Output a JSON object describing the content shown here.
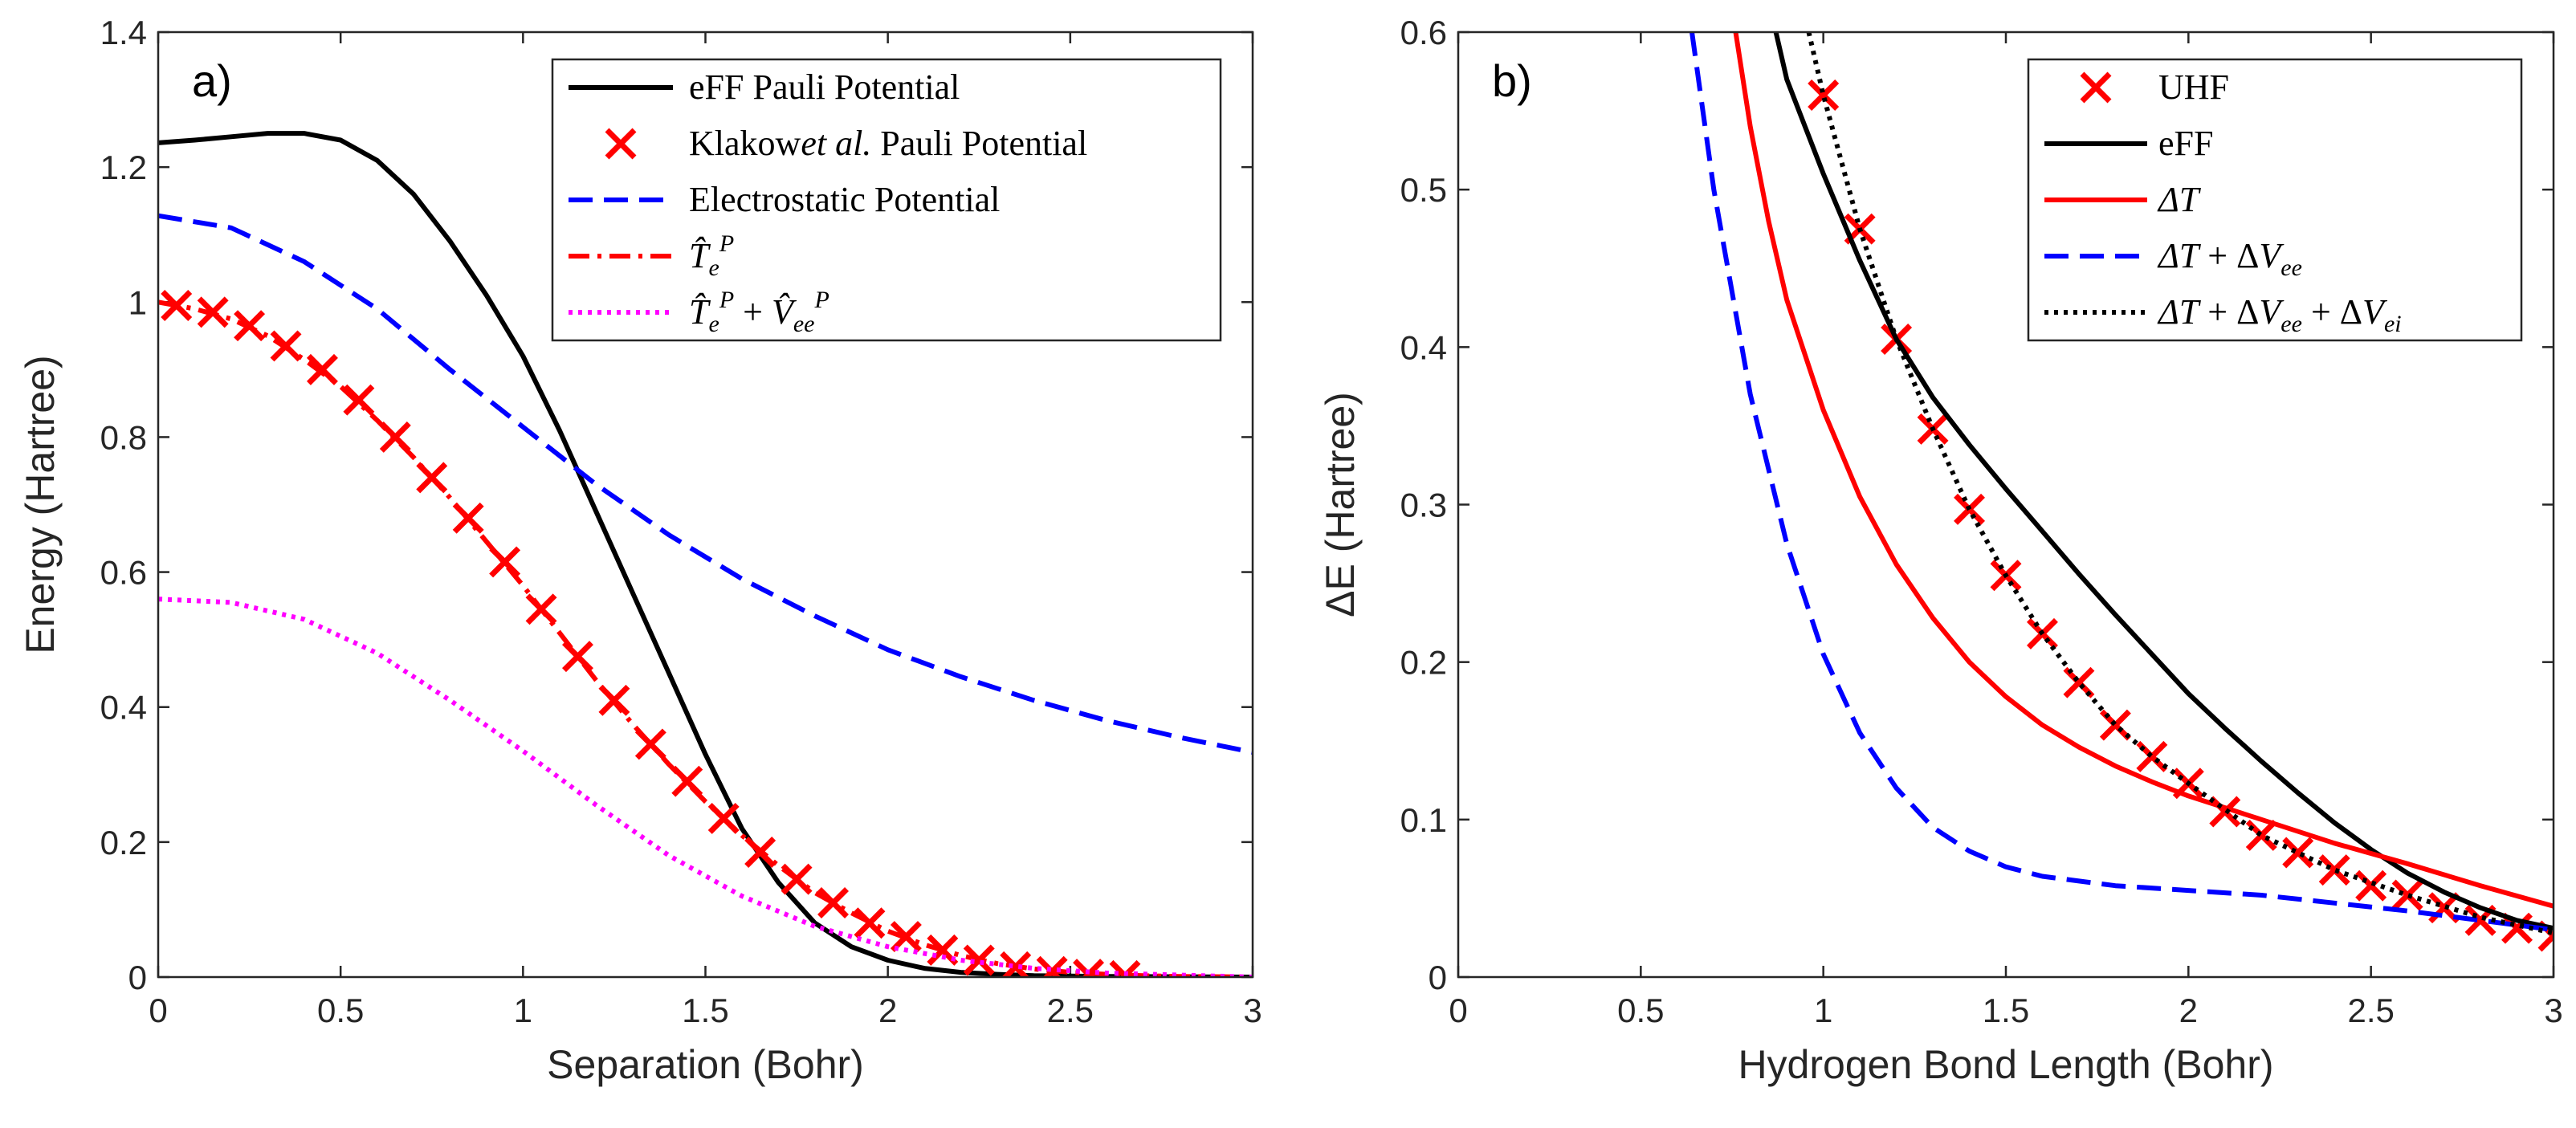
{
  "chart_data": [
    {
      "type": "line",
      "panel_label": "a)",
      "xlabel": "Separation (Bohr)",
      "ylabel": "Energy (Hartree)",
      "xlim": [
        0,
        3
      ],
      "ylim": [
        0,
        1.4
      ],
      "xticks": [
        "0",
        "0.5",
        "1",
        "1.5",
        "2",
        "2.5",
        "3"
      ],
      "yticks": [
        "0",
        "0.2",
        "0.4",
        "0.6",
        "0.8",
        "1",
        "1.2",
        "1.4"
      ],
      "legend_position": "top-right",
      "series": [
        {
          "name": "eFF Pauli Potential",
          "label_parts": [
            [
              "eFF Pauli Potential",
              ""
            ]
          ],
          "color": "#000000",
          "dash": "solid",
          "x": [
            0,
            0.1,
            0.2,
            0.3,
            0.4,
            0.5,
            0.6,
            0.7,
            0.8,
            0.9,
            1.0,
            1.1,
            1.2,
            1.3,
            1.4,
            1.5,
            1.6,
            1.7,
            1.8,
            1.9,
            2.0,
            2.1,
            2.2,
            2.3,
            2.4,
            2.6,
            2.8,
            3.0
          ],
          "y": [
            1.236,
            1.24,
            1.245,
            1.25,
            1.25,
            1.24,
            1.21,
            1.16,
            1.09,
            1.01,
            0.92,
            0.81,
            0.69,
            0.57,
            0.45,
            0.33,
            0.22,
            0.14,
            0.08,
            0.045,
            0.025,
            0.013,
            0.007,
            0.004,
            0.002,
            0.001,
            0.0005,
            0
          ]
        },
        {
          "name": "Klakowet al. Pauli Potential",
          "label_parts": [
            [
              "Klakow",
              ""
            ],
            [
              "et al.",
              "it"
            ],
            [
              " Pauli Potential",
              ""
            ]
          ],
          "color": "#ff0000",
          "marker": "x",
          "x": [
            0.05,
            0.15,
            0.25,
            0.35,
            0.45,
            0.55,
            0.65,
            0.75,
            0.85,
            0.95,
            1.05,
            1.15,
            1.25,
            1.35,
            1.45,
            1.55,
            1.65,
            1.75,
            1.85,
            1.95,
            2.05,
            2.15,
            2.25,
            2.35,
            2.45,
            2.55,
            2.65
          ],
          "y": [
            0.995,
            0.985,
            0.965,
            0.935,
            0.9,
            0.855,
            0.8,
            0.74,
            0.68,
            0.615,
            0.545,
            0.475,
            0.41,
            0.345,
            0.29,
            0.235,
            0.185,
            0.145,
            0.11,
            0.08,
            0.06,
            0.04,
            0.025,
            0.015,
            0.008,
            0.004,
            0.002
          ]
        },
        {
          "name": "Electrostatic Potential",
          "label_parts": [
            [
              "Electrostatic Potential",
              ""
            ]
          ],
          "color": "#0000ff",
          "dash": "dashed",
          "x": [
            0,
            0.2,
            0.4,
            0.6,
            0.8,
            1.0,
            1.2,
            1.4,
            1.6,
            1.8,
            2.0,
            2.2,
            2.4,
            2.6,
            2.8,
            3.0
          ],
          "y": [
            1.128,
            1.11,
            1.06,
            0.99,
            0.9,
            0.815,
            0.73,
            0.655,
            0.59,
            0.535,
            0.485,
            0.445,
            0.41,
            0.38,
            0.355,
            0.333
          ]
        },
        {
          "name": "T_e^P",
          "label_parts": [
            [
              "T",
              "hat"
            ],
            [
              "e",
              "sub"
            ],
            [
              "P",
              "sup"
            ]
          ],
          "color": "#ff0000",
          "dash": "dashdot",
          "x": [
            0,
            0.1,
            0.2,
            0.3,
            0.4,
            0.5,
            0.6,
            0.7,
            0.8,
            0.9,
            1.0,
            1.1,
            1.2,
            1.3,
            1.4,
            1.5,
            1.6,
            1.7,
            1.8,
            1.9,
            2.0,
            2.1,
            2.2,
            2.3,
            2.4,
            2.5,
            2.6,
            2.7,
            2.8,
            3.0
          ],
          "y": [
            1.0,
            0.99,
            0.975,
            0.95,
            0.915,
            0.875,
            0.825,
            0.77,
            0.71,
            0.645,
            0.58,
            0.51,
            0.44,
            0.375,
            0.315,
            0.26,
            0.21,
            0.165,
            0.125,
            0.095,
            0.068,
            0.048,
            0.032,
            0.02,
            0.012,
            0.007,
            0.004,
            0.002,
            0.001,
            0
          ]
        },
        {
          "name": "T_e^P + V_ee^P",
          "label_parts": [
            [
              "T",
              "hat"
            ],
            [
              "e",
              "sub"
            ],
            [
              "P",
              "sup"
            ],
            [
              " + ",
              ""
            ],
            [
              "V",
              "hat"
            ],
            [
              "ee",
              "sub"
            ],
            [
              "P",
              "sup"
            ]
          ],
          "color": "#ff00ff",
          "dash": "dotted",
          "x": [
            0,
            0.2,
            0.4,
            0.6,
            0.8,
            1.0,
            1.2,
            1.4,
            1.6,
            1.8,
            2.0,
            2.2,
            2.4,
            2.6,
            2.8,
            3.0
          ],
          "y": [
            0.56,
            0.555,
            0.53,
            0.48,
            0.41,
            0.335,
            0.255,
            0.18,
            0.12,
            0.075,
            0.045,
            0.025,
            0.013,
            0.006,
            0.003,
            0
          ]
        }
      ]
    },
    {
      "type": "line",
      "panel_label": "b)",
      "xlabel": "Hydrogen Bond Length (Bohr)",
      "ylabel": "ΔE (Hartree)",
      "xlim": [
        0,
        3
      ],
      "ylim": [
        0,
        0.6
      ],
      "xticks": [
        "0",
        "0.5",
        "1",
        "1.5",
        "2",
        "2.5",
        "3"
      ],
      "yticks": [
        "0",
        "0.1",
        "0.2",
        "0.3",
        "0.4",
        "0.5",
        "0.6"
      ],
      "legend_position": "top-right",
      "series": [
        {
          "name": "UHF",
          "label_parts": [
            [
              "UHF",
              ""
            ]
          ],
          "color": "#ff0000",
          "marker": "x",
          "x": [
            1.0,
            1.1,
            1.2,
            1.3,
            1.4,
            1.5,
            1.6,
            1.7,
            1.8,
            1.9,
            2.0,
            2.1,
            2.2,
            2.3,
            2.4,
            2.5,
            2.6,
            2.7,
            2.8,
            2.9,
            3.0
          ],
          "y": [
            0.56,
            0.475,
            0.405,
            0.348,
            0.297,
            0.255,
            0.218,
            0.187,
            0.16,
            0.14,
            0.123,
            0.105,
            0.09,
            0.079,
            0.068,
            0.058,
            0.052,
            0.044,
            0.036,
            0.031,
            0.026
          ]
        },
        {
          "name": "eFF",
          "label_parts": [
            [
              "eFF",
              ""
            ]
          ],
          "color": "#000000",
          "dash": "solid",
          "x": [
            0.87,
            0.9,
            0.95,
            1.0,
            1.1,
            1.2,
            1.3,
            1.4,
            1.5,
            1.6,
            1.7,
            1.8,
            1.9,
            2.0,
            2.1,
            2.2,
            2.3,
            2.4,
            2.5,
            2.6,
            2.7,
            2.8,
            2.9,
            3.0
          ],
          "y": [
            0.6,
            0.57,
            0.54,
            0.51,
            0.455,
            0.405,
            0.368,
            0.338,
            0.31,
            0.283,
            0.256,
            0.23,
            0.205,
            0.18,
            0.158,
            0.137,
            0.117,
            0.098,
            0.081,
            0.066,
            0.054,
            0.044,
            0.036,
            0.031
          ]
        },
        {
          "name": "ΔT",
          "label_parts": [
            [
              "ΔT",
              "it"
            ]
          ],
          "color": "#ff0000",
          "dash": "solid",
          "x": [
            0.76,
            0.8,
            0.85,
            0.9,
            1.0,
            1.1,
            1.2,
            1.3,
            1.4,
            1.5,
            1.6,
            1.7,
            1.8,
            1.9,
            2.0,
            2.2,
            2.4,
            2.6,
            2.8,
            3.0
          ],
          "y": [
            0.6,
            0.54,
            0.48,
            0.43,
            0.36,
            0.305,
            0.262,
            0.228,
            0.2,
            0.178,
            0.16,
            0.146,
            0.134,
            0.124,
            0.115,
            0.1,
            0.085,
            0.072,
            0.058,
            0.045
          ]
        },
        {
          "name": "ΔT + ΔV_ee",
          "label_parts": [
            [
              "ΔT",
              "it"
            ],
            [
              " + Δ",
              ""
            ],
            [
              "V",
              "it"
            ],
            [
              "ee",
              "sub"
            ]
          ],
          "color": "#0000ff",
          "dash": "dashed",
          "x": [
            0.64,
            0.7,
            0.8,
            0.9,
            1.0,
            1.1,
            1.2,
            1.3,
            1.4,
            1.5,
            1.6,
            1.8,
            2.0,
            2.2,
            2.4,
            2.6,
            2.8,
            3.0
          ],
          "y": [
            0.6,
            0.5,
            0.37,
            0.275,
            0.205,
            0.155,
            0.12,
            0.095,
            0.08,
            0.07,
            0.064,
            0.058,
            0.055,
            0.052,
            0.047,
            0.042,
            0.036,
            0.03
          ]
        },
        {
          "name": "ΔT + ΔV_ee + ΔV_ei",
          "label_parts": [
            [
              "ΔT",
              "it"
            ],
            [
              " + Δ",
              ""
            ],
            [
              "V",
              "it"
            ],
            [
              "ee",
              "sub"
            ],
            [
              " + Δ",
              ""
            ],
            [
              "V",
              "it"
            ],
            [
              "ei",
              "sub"
            ]
          ],
          "color": "#000000",
          "dash": "dotted",
          "x": [
            0.96,
            1.0,
            1.1,
            1.2,
            1.3,
            1.4,
            1.5,
            1.6,
            1.7,
            1.8,
            1.9,
            2.0,
            2.2,
            2.4,
            2.6,
            2.8,
            3.0
          ],
          "y": [
            0.6,
            0.56,
            0.475,
            0.405,
            0.348,
            0.297,
            0.255,
            0.218,
            0.187,
            0.16,
            0.14,
            0.123,
            0.09,
            0.068,
            0.052,
            0.038,
            0.028
          ]
        }
      ]
    }
  ]
}
